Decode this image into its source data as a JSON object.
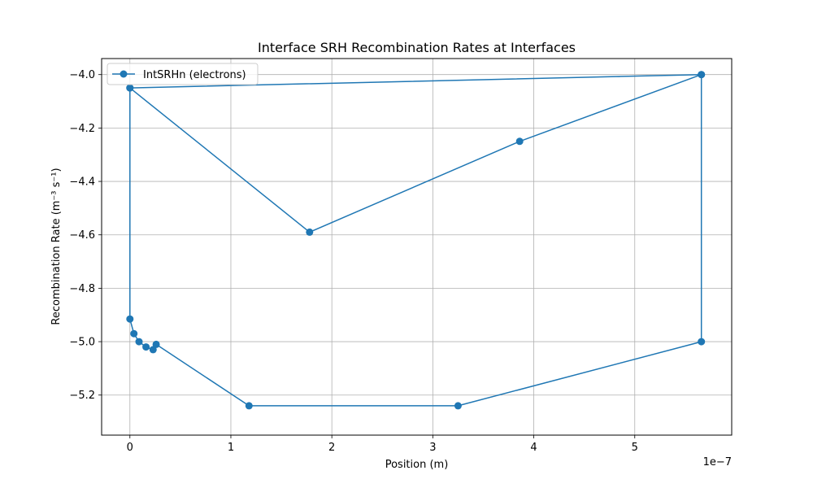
{
  "chart_data": {
    "type": "line",
    "title": "Interface SRH Recombination Rates at Interfaces",
    "xlabel": "Position (m)",
    "ylabel": "Recombination Rate (m⁻³ s⁻¹)",
    "x_offset_label": "1e−7",
    "x_scale": 1e-07,
    "xlim": [
      -0.28,
      5.96
    ],
    "ylim": [
      -5.35,
      -3.94
    ],
    "x_ticks": [
      0,
      1,
      2,
      3,
      4,
      5
    ],
    "x_tick_labels": [
      "0",
      "1",
      "2",
      "3",
      "4",
      "5"
    ],
    "y_ticks": [
      -5.2,
      -5.0,
      -4.8,
      -4.6,
      -4.4,
      -4.2,
      -4.0
    ],
    "y_tick_labels": [
      "−5.2",
      "−5.0",
      "−4.8",
      "−4.6",
      "−4.4",
      "−4.2",
      "−4.0"
    ],
    "grid": true,
    "legend_position": "top-left",
    "series": [
      {
        "name": "IntSRHn (electrons)",
        "color": "#1f77b4",
        "marker": "circle",
        "x": [
          0.0,
          1.78,
          3.86,
          5.66,
          0.0,
          0.0,
          0.04,
          0.09,
          0.16,
          0.23,
          0.26,
          1.18,
          3.25,
          5.66,
          5.66
        ],
        "y": [
          -4.05,
          -4.59,
          -4.25,
          -4.0,
          -4.05,
          -4.915,
          -4.97,
          -5.0,
          -5.02,
          -5.03,
          -5.01,
          -5.24,
          -5.24,
          -5.0,
          -4.0
        ]
      }
    ]
  }
}
